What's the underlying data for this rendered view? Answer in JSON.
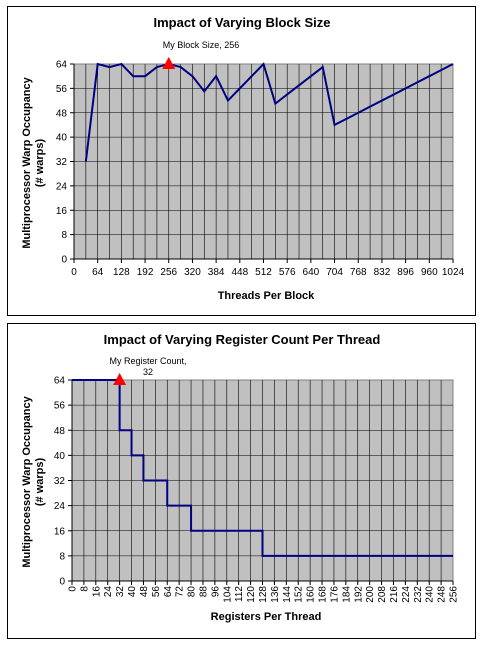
{
  "charts": [
    {
      "type": "line",
      "title": "Impact of Varying Block Size",
      "xlabel": "Threads Per Block",
      "ylabel_line1": "Multiprocessor Warp Occupancy",
      "ylabel_line2": "(# warps)",
      "xlim": [
        0,
        1024
      ],
      "ylim": [
        0,
        64
      ],
      "xticks": [
        0,
        64,
        128,
        192,
        256,
        320,
        384,
        448,
        512,
        576,
        640,
        704,
        768,
        832,
        896,
        960,
        1024
      ],
      "yticks": [
        0,
        8,
        16,
        24,
        32,
        40,
        48,
        56,
        64
      ],
      "x_minor_step": 32,
      "plot_bg": "#c0c0c0",
      "line_color": "#000080",
      "marker_color": "#ff0000",
      "series": [
        {
          "x": [
            32,
            64,
            96,
            128,
            160,
            192,
            224,
            256,
            288,
            320,
            352,
            384,
            416,
            448,
            480,
            512,
            544,
            576,
            608,
            640,
            672,
            704,
            736,
            768,
            800,
            832,
            864,
            896,
            928,
            960,
            992,
            1024
          ],
          "y": [
            32,
            64,
            63,
            64,
            60,
            60,
            63,
            64,
            63,
            60,
            55,
            60,
            52,
            56,
            60,
            64,
            51,
            54,
            57,
            60,
            63,
            44,
            46,
            48,
            50,
            52,
            54,
            56,
            58,
            60,
            62,
            64
          ]
        }
      ],
      "marker": {
        "x": 256,
        "y": 64,
        "label": "My Block Size, 256"
      }
    },
    {
      "type": "line",
      "title": "Impact of Varying Register Count Per Thread",
      "xlabel": "Registers Per Thread",
      "ylabel_line1": "Multiprocessor Warp Occupancy",
      "ylabel_line2": "(# warps)",
      "xlim": [
        0,
        256
      ],
      "ylim": [
        0,
        64
      ],
      "xticks": [
        0,
        8,
        16,
        24,
        32,
        40,
        48,
        56,
        64,
        72,
        80,
        88,
        96,
        104,
        112,
        120,
        128,
        136,
        144,
        152,
        160,
        168,
        176,
        184,
        192,
        200,
        208,
        216,
        224,
        232,
        240,
        248,
        256
      ],
      "yticks": [
        0,
        8,
        16,
        24,
        32,
        40,
        48,
        56,
        64
      ],
      "x_minor_step": 8,
      "plot_bg": "#c0c0c0",
      "line_color": "#000080",
      "marker_color": "#ff0000",
      "series": [
        {
          "x": [
            0,
            32,
            32,
            40,
            40,
            48,
            48,
            64,
            64,
            80,
            80,
            128,
            128,
            256
          ],
          "y": [
            64,
            64,
            48,
            48,
            40,
            40,
            32,
            32,
            24,
            24,
            16,
            16,
            8,
            8
          ]
        }
      ],
      "marker": {
        "x": 32,
        "y": 64,
        "label_line1": "My Register Count,",
        "label_line2": "32"
      }
    }
  ]
}
